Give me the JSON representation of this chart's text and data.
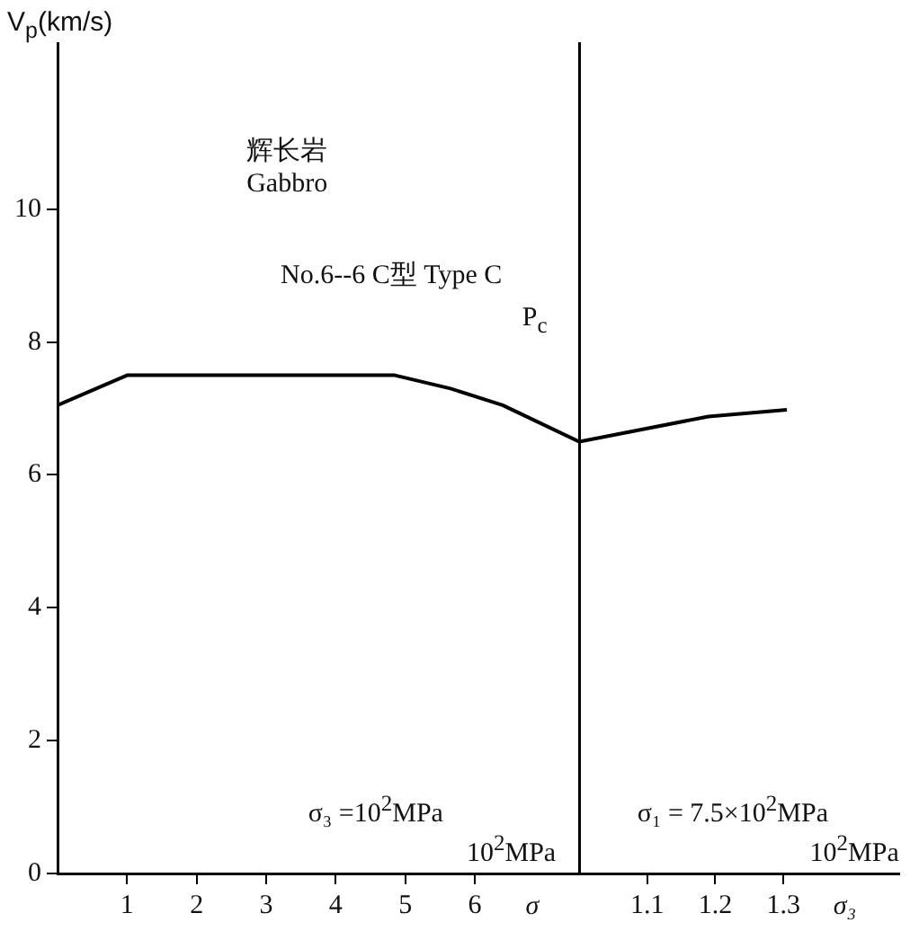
{
  "chart_data": [
    {
      "type": "line",
      "x": [
        0,
        1,
        4.85,
        5.65,
        6.4,
        7.5
      ],
      "values": [
        7.05,
        7.5,
        7.5,
        7.3,
        7.05,
        6.5
      ],
      "color": "#000000",
      "xlim": [
        0,
        7.5
      ],
      "xticks": [
        1,
        2,
        3,
        4,
        5,
        6
      ],
      "ylim": [
        0,
        12.5
      ],
      "yticks": [
        0,
        2,
        4,
        6,
        8,
        10
      ],
      "ylabel": "V$_{p}$(km/s)",
      "xlabel": "σ",
      "annotations": [
        "辉长岩",
        "Gabbro",
        "No.6--6 C型 Type C",
        "σ₃ =10$^{2}$MPa",
        "10$^{2}$MPa",
        "P$_{c}$"
      ],
      "grid": false,
      "legend": false,
      "marker": "none"
    },
    {
      "type": "line",
      "x": [
        1.0,
        1.19,
        1.305
      ],
      "values": [
        6.5,
        6.88,
        6.98
      ],
      "color": "#000000",
      "xlim": [
        1.0,
        1.47
      ],
      "xticks": [
        1.1,
        1.2,
        1.3
      ],
      "ylim": [
        0,
        12.5
      ],
      "xlabel": "σ₃",
      "annotations": [
        "σ₁ = 7.5×10$^{2}$MPa",
        "10$^{2}$MPa"
      ],
      "grid": false,
      "legend": false,
      "marker": "none",
      "tick_labels": "x"
    }
  ]
}
